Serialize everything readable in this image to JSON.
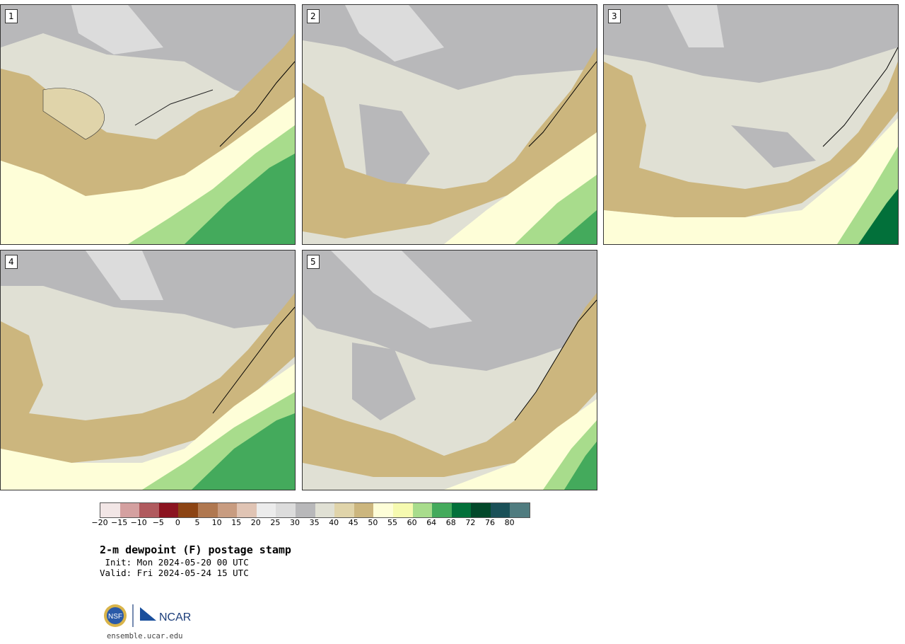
{
  "panels": [
    {
      "label": "1"
    },
    {
      "label": "2"
    },
    {
      "label": "3"
    },
    {
      "label": "4"
    },
    {
      "label": "5"
    }
  ],
  "colorbar": {
    "colors": [
      "#f2e6e6",
      "#d4a0a0",
      "#b05a5e",
      "#8b1420",
      "#8c4414",
      "#b07850",
      "#c89c80",
      "#e0c4b4",
      "#ececec",
      "#dcdcdc",
      "#b8b8ba",
      "#e0e0d4",
      "#e0d4aa",
      "#ccb67e",
      "#fefed8",
      "#f6fab0",
      "#a8dc8c",
      "#44aa5c",
      "#02703a",
      "#02482a",
      "#1a5058",
      "#507c80"
    ],
    "ticks": [
      "−20",
      "−15",
      "−10",
      "−5",
      "0",
      "5",
      "10",
      "15",
      "20",
      "25",
      "30",
      "35",
      "40",
      "45",
      "50",
      "55",
      "60",
      "64",
      "68",
      "72",
      "76",
      "80"
    ]
  },
  "title": "2-m dewpoint (F) postage stamp",
  "init": " Init: Mon 2024-05-20 00 UTC",
  "valid": "Valid: Fri 2024-05-24 15 UTC",
  "logo": {
    "left": "NSF",
    "right": "NCAR"
  },
  "site": "ensemble.ucar.edu"
}
